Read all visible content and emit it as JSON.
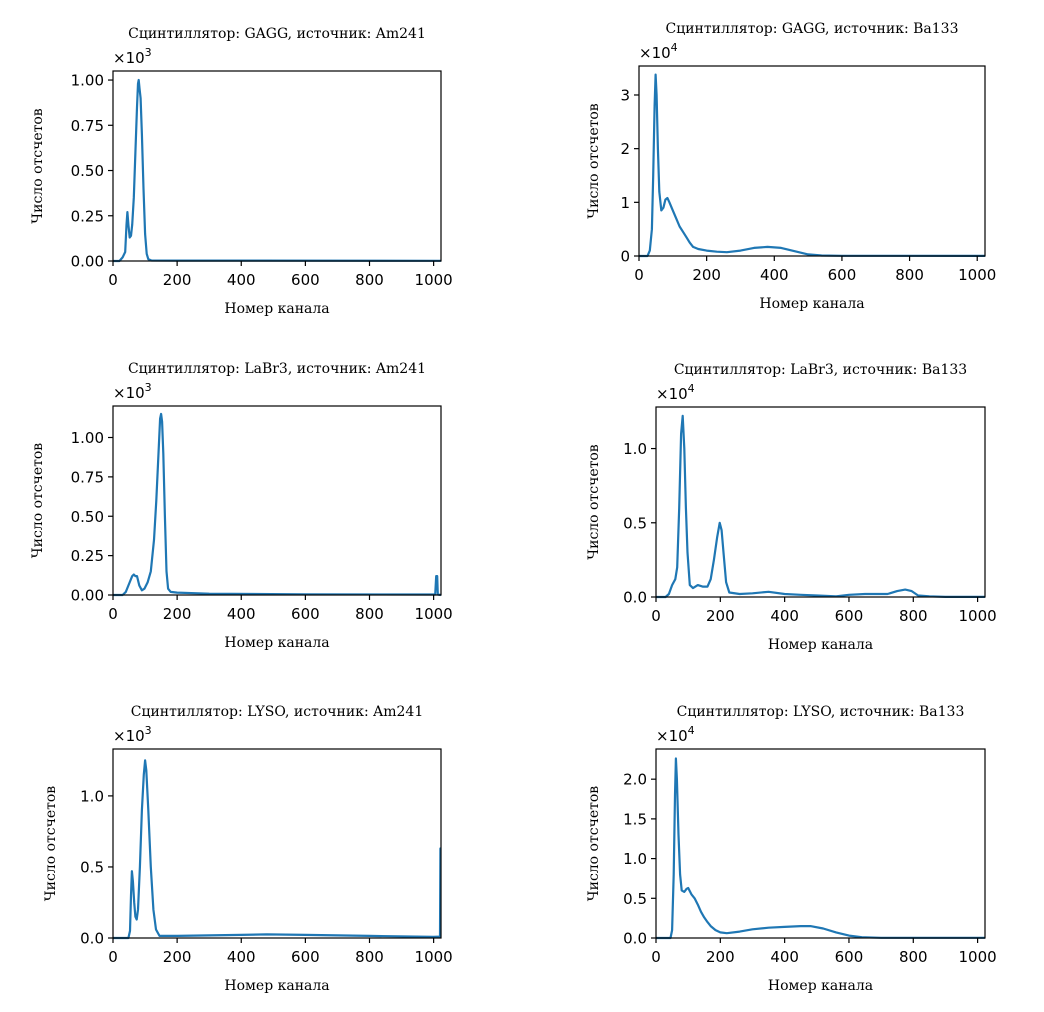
{
  "colors": {
    "series": "#1f77b4",
    "axes": "#000000"
  },
  "chart_data": [
    {
      "type": "line",
      "title": "Сцинтиллятор: GAGG, источник: Am241",
      "xlabel": "Номер канала",
      "ylabel": "Число отсчетов",
      "offset_base": "×10",
      "offset_exp": "3",
      "xlim": [
        0,
        1023
      ],
      "ylim": [
        0,
        1.05
      ],
      "xticks": [
        "0",
        "200",
        "400",
        "600",
        "800",
        "1000"
      ],
      "yticks": [
        "0.00",
        "0.25",
        "0.50",
        "0.75",
        "1.00"
      ],
      "grid": false,
      "points": [
        [
          0,
          0
        ],
        [
          20,
          0
        ],
        [
          30,
          0.02
        ],
        [
          38,
          0.05
        ],
        [
          42,
          0.2
        ],
        [
          45,
          0.27
        ],
        [
          48,
          0.2
        ],
        [
          52,
          0.13
        ],
        [
          56,
          0.14
        ],
        [
          60,
          0.2
        ],
        [
          65,
          0.35
        ],
        [
          70,
          0.6
        ],
        [
          75,
          0.85
        ],
        [
          78,
          0.98
        ],
        [
          80,
          1.0
        ],
        [
          83,
          0.95
        ],
        [
          86,
          0.9
        ],
        [
          90,
          0.7
        ],
        [
          95,
          0.4
        ],
        [
          100,
          0.15
        ],
        [
          105,
          0.04
        ],
        [
          110,
          0.01
        ],
        [
          120,
          0.003
        ],
        [
          200,
          0.002
        ],
        [
          1023,
          0.001
        ]
      ]
    },
    {
      "type": "line",
      "title": "Сцинтиллятор: GAGG, источник: Ba133",
      "xlabel": "Номер канала",
      "ylabel": "Число отсчетов",
      "offset_base": "×10",
      "offset_exp": "4",
      "xlim": [
        0,
        1023
      ],
      "ylim": [
        0,
        3.54
      ],
      "xticks": [
        "0",
        "200",
        "400",
        "600",
        "800",
        "1000"
      ],
      "yticks": [
        "0",
        "1",
        "2",
        "3"
      ],
      "grid": false,
      "points": [
        [
          0,
          0
        ],
        [
          25,
          0
        ],
        [
          32,
          0.1
        ],
        [
          38,
          0.5
        ],
        [
          42,
          1.5
        ],
        [
          46,
          2.8
        ],
        [
          49,
          3.38
        ],
        [
          52,
          3.0
        ],
        [
          56,
          2.0
        ],
        [
          60,
          1.2
        ],
        [
          66,
          0.85
        ],
        [
          72,
          0.9
        ],
        [
          78,
          1.05
        ],
        [
          84,
          1.08
        ],
        [
          90,
          1.0
        ],
        [
          100,
          0.85
        ],
        [
          110,
          0.7
        ],
        [
          120,
          0.55
        ],
        [
          130,
          0.45
        ],
        [
          140,
          0.35
        ],
        [
          150,
          0.25
        ],
        [
          160,
          0.17
        ],
        [
          175,
          0.13
        ],
        [
          200,
          0.1
        ],
        [
          230,
          0.08
        ],
        [
          260,
          0.07
        ],
        [
          300,
          0.1
        ],
        [
          340,
          0.15
        ],
        [
          380,
          0.17
        ],
        [
          420,
          0.15
        ],
        [
          460,
          0.09
        ],
        [
          500,
          0.03
        ],
        [
          540,
          0.01
        ],
        [
          600,
          0.003
        ],
        [
          1023,
          0.002
        ]
      ]
    },
    {
      "type": "line",
      "title": "Сцинтиллятор: LaBr3, источник: Am241",
      "xlabel": "Номер канала",
      "ylabel": "Число отсчетов",
      "offset_base": "×10",
      "offset_exp": "3",
      "xlim": [
        0,
        1023
      ],
      "ylim": [
        0,
        1.2
      ],
      "xticks": [
        "0",
        "200",
        "400",
        "600",
        "800",
        "1000"
      ],
      "yticks": [
        "0.00",
        "0.25",
        "0.50",
        "0.75",
        "1.00"
      ],
      "grid": false,
      "points": [
        [
          0,
          0
        ],
        [
          30,
          0
        ],
        [
          40,
          0.02
        ],
        [
          50,
          0.07
        ],
        [
          60,
          0.12
        ],
        [
          65,
          0.13
        ],
        [
          70,
          0.12
        ],
        [
          75,
          0.12
        ],
        [
          82,
          0.06
        ],
        [
          90,
          0.03
        ],
        [
          98,
          0.04
        ],
        [
          108,
          0.08
        ],
        [
          118,
          0.15
        ],
        [
          128,
          0.35
        ],
        [
          135,
          0.6
        ],
        [
          142,
          0.9
        ],
        [
          147,
          1.12
        ],
        [
          150,
          1.15
        ],
        [
          153,
          1.1
        ],
        [
          157,
          0.9
        ],
        [
          162,
          0.5
        ],
        [
          167,
          0.15
        ],
        [
          172,
          0.04
        ],
        [
          180,
          0.02
        ],
        [
          200,
          0.015
        ],
        [
          300,
          0.008
        ],
        [
          600,
          0.004
        ],
        [
          1005,
          0.003
        ],
        [
          1008,
          0.12
        ],
        [
          1011,
          0.12
        ],
        [
          1013,
          0.003
        ],
        [
          1023,
          0
        ]
      ]
    },
    {
      "type": "line",
      "title": "Сцинтиллятор: LaBr3, источник: Ba133",
      "xlabel": "Номер канала",
      "ylabel": "Число отсчетов",
      "offset_base": "×10",
      "offset_exp": "4",
      "xlim": [
        0,
        1023
      ],
      "ylim": [
        0,
        1.28
      ],
      "xticks": [
        "0",
        "200",
        "400",
        "600",
        "800",
        "1000"
      ],
      "yticks": [
        "0.0",
        "0.5",
        "1.0"
      ],
      "grid": false,
      "points": [
        [
          0,
          0
        ],
        [
          30,
          0
        ],
        [
          40,
          0.02
        ],
        [
          50,
          0.08
        ],
        [
          60,
          0.12
        ],
        [
          66,
          0.2
        ],
        [
          72,
          0.6
        ],
        [
          78,
          1.1
        ],
        [
          83,
          1.22
        ],
        [
          88,
          1.0
        ],
        [
          93,
          0.6
        ],
        [
          98,
          0.3
        ],
        [
          105,
          0.08
        ],
        [
          115,
          0.06
        ],
        [
          130,
          0.08
        ],
        [
          145,
          0.07
        ],
        [
          160,
          0.07
        ],
        [
          170,
          0.12
        ],
        [
          180,
          0.25
        ],
        [
          190,
          0.4
        ],
        [
          198,
          0.5
        ],
        [
          204,
          0.45
        ],
        [
          210,
          0.3
        ],
        [
          218,
          0.1
        ],
        [
          228,
          0.03
        ],
        [
          260,
          0.02
        ],
        [
          300,
          0.025
        ],
        [
          350,
          0.035
        ],
        [
          400,
          0.02
        ],
        [
          450,
          0.015
        ],
        [
          500,
          0.01
        ],
        [
          560,
          0.005
        ],
        [
          600,
          0.015
        ],
        [
          650,
          0.02
        ],
        [
          690,
          0.02
        ],
        [
          720,
          0.02
        ],
        [
          750,
          0.04
        ],
        [
          775,
          0.05
        ],
        [
          795,
          0.04
        ],
        [
          815,
          0.01
        ],
        [
          850,
          0.005
        ],
        [
          900,
          0.001
        ],
        [
          1023,
          0.001
        ]
      ]
    },
    {
      "type": "line",
      "title": "Сцинтиллятор: LYSO, источник: Am241",
      "xlabel": "Номер канала",
      "ylabel": "Число отсчетов",
      "offset_base": "×10",
      "offset_exp": "3",
      "xlim": [
        0,
        1023
      ],
      "ylim": [
        0,
        1.33
      ],
      "xticks": [
        "0",
        "200",
        "400",
        "600",
        "800",
        "1000"
      ],
      "yticks": [
        "0.0",
        "0.5",
        "1.0"
      ],
      "grid": false,
      "points": [
        [
          0,
          0
        ],
        [
          48,
          0
        ],
        [
          53,
          0.05
        ],
        [
          56,
          0.3
        ],
        [
          59,
          0.47
        ],
        [
          62,
          0.4
        ],
        [
          66,
          0.25
        ],
        [
          70,
          0.15
        ],
        [
          74,
          0.13
        ],
        [
          78,
          0.2
        ],
        [
          84,
          0.5
        ],
        [
          90,
          0.9
        ],
        [
          96,
          1.15
        ],
        [
          100,
          1.25
        ],
        [
          104,
          1.18
        ],
        [
          110,
          0.9
        ],
        [
          118,
          0.5
        ],
        [
          126,
          0.2
        ],
        [
          134,
          0.06
        ],
        [
          145,
          0.015
        ],
        [
          200,
          0.015
        ],
        [
          300,
          0.018
        ],
        [
          400,
          0.022
        ],
        [
          480,
          0.025
        ],
        [
          600,
          0.022
        ],
        [
          800,
          0.015
        ],
        [
          1000,
          0.008
        ],
        [
          1020,
          0.01
        ],
        [
          1021,
          0.63
        ],
        [
          1023,
          0.63
        ]
      ]
    },
    {
      "type": "line",
      "title": "Сцинтиллятор: LYSO, источник: Ba133",
      "xlabel": "Номер канала",
      "ylabel": "Число отсчетов",
      "offset_base": "×10",
      "offset_exp": "4",
      "xlim": [
        0,
        1023
      ],
      "ylim": [
        0,
        2.38
      ],
      "xticks": [
        "0",
        "200",
        "400",
        "600",
        "800",
        "1000"
      ],
      "yticks": [
        "0.0",
        "0.5",
        "1.0",
        "1.5",
        "2.0"
      ],
      "grid": false,
      "points": [
        [
          0,
          0
        ],
        [
          45,
          0
        ],
        [
          50,
          0.1
        ],
        [
          55,
          0.8
        ],
        [
          59,
          1.8
        ],
        [
          62,
          2.26
        ],
        [
          65,
          2.0
        ],
        [
          70,
          1.3
        ],
        [
          75,
          0.8
        ],
        [
          80,
          0.6
        ],
        [
          88,
          0.58
        ],
        [
          95,
          0.62
        ],
        [
          100,
          0.63
        ],
        [
          110,
          0.55
        ],
        [
          120,
          0.5
        ],
        [
          130,
          0.42
        ],
        [
          140,
          0.33
        ],
        [
          150,
          0.26
        ],
        [
          160,
          0.2
        ],
        [
          170,
          0.15
        ],
        [
          185,
          0.1
        ],
        [
          200,
          0.07
        ],
        [
          220,
          0.06
        ],
        [
          260,
          0.08
        ],
        [
          300,
          0.11
        ],
        [
          350,
          0.13
        ],
        [
          400,
          0.14
        ],
        [
          450,
          0.15
        ],
        [
          480,
          0.15
        ],
        [
          520,
          0.12
        ],
        [
          560,
          0.07
        ],
        [
          600,
          0.03
        ],
        [
          640,
          0.01
        ],
        [
          700,
          0.002
        ],
        [
          1023,
          0.002
        ]
      ]
    }
  ]
}
